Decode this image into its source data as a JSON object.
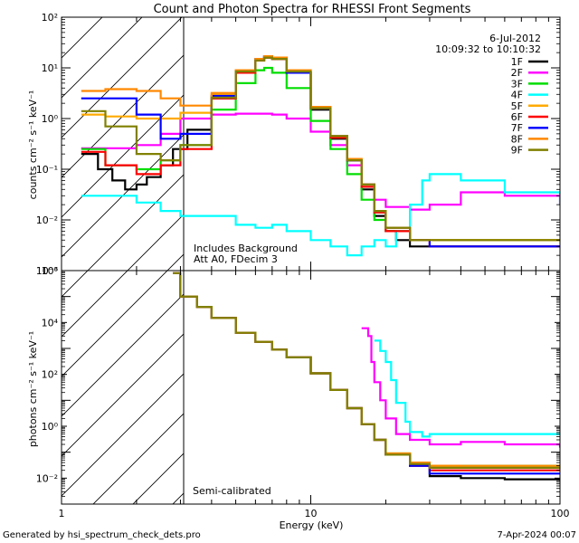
{
  "title": "Count and Photon Spectra for RHESSI Front Segments",
  "footer_left": "Generated by hsi_spectrum_check_dets.pro",
  "footer_right": "7-Apr-2024 00:07",
  "colors": {
    "1F": "#000000",
    "2F": "#ff00ff",
    "3F": "#00dd00",
    "4F": "#00ffff",
    "5F": "#ffaa00",
    "6F": "#ff0000",
    "7F": "#0000ff",
    "8F": "#ff8800",
    "9F": "#808000"
  },
  "chart_data": [
    {
      "type": "line",
      "panel": "counts",
      "title": "Count and Photon Spectra for RHESSI Front Segments",
      "date": "6-Jul-2012",
      "time_range": "10:09:32 to 10:10:32",
      "xlabel": "Energy (keV)",
      "ylabel": "counts cm⁻² s⁻¹ keV⁻¹",
      "xscale": "log",
      "yscale": "log",
      "xlim": [
        1,
        100
      ],
      "ylim": [
        0.001,
        100
      ],
      "x_ticks": [
        "1",
        "10",
        "100"
      ],
      "y_ticks": [
        "10⁻³",
        "10⁻²",
        "10⁻¹",
        "10⁰",
        "10¹",
        "10²"
      ],
      "shaded_below_keV": 3,
      "annotations": [
        "Includes Background",
        "Att A0, FDecim 3"
      ],
      "legend_position": "top-right",
      "series": [
        {
          "name": "1F",
          "x": [
            1.2,
            1.4,
            1.6,
            1.8,
            2.0,
            2.2,
            2.5,
            2.8,
            3.2,
            4,
            5,
            6,
            6.5,
            7,
            8,
            10,
            12,
            14,
            16,
            18,
            20,
            22,
            25,
            30,
            40,
            60,
            100
          ],
          "y": [
            0.2,
            0.1,
            0.06,
            0.04,
            0.05,
            0.07,
            0.12,
            0.25,
            0.6,
            2.5,
            8,
            14,
            16,
            15,
            8,
            1.5,
            0.4,
            0.15,
            0.04,
            0.012,
            0.006,
            0.004,
            0.003,
            0.003,
            0.003,
            0.003,
            0.003
          ]
        },
        {
          "name": "2F",
          "x": [
            1.2,
            1.5,
            2.0,
            2.5,
            3,
            4,
            5,
            6,
            7,
            8,
            10,
            12,
            14,
            16,
            18,
            20,
            25,
            30,
            40,
            60,
            100
          ],
          "y": [
            0.26,
            0.26,
            0.3,
            0.5,
            1.0,
            1.2,
            1.25,
            1.25,
            1.2,
            1.0,
            0.55,
            0.3,
            0.12,
            0.05,
            0.025,
            0.018,
            0.016,
            0.02,
            0.035,
            0.03,
            0.02
          ]
        },
        {
          "name": "3F",
          "x": [
            1.2,
            1.5,
            2.0,
            2.5,
            3,
            4,
            5,
            6,
            6.5,
            7,
            8,
            10,
            12,
            14,
            16,
            18,
            20,
            25,
            30,
            40,
            60,
            100
          ],
          "y": [
            0.25,
            0.12,
            0.1,
            0.15,
            0.3,
            1.5,
            5,
            9,
            10,
            8,
            4,
            0.9,
            0.25,
            0.08,
            0.025,
            0.01,
            0.006,
            0.004,
            0.004,
            0.004,
            0.004,
            0.004
          ]
        },
        {
          "name": "4F",
          "x": [
            1.2,
            1.5,
            2.0,
            2.5,
            3,
            4,
            5,
            6,
            7,
            8,
            10,
            12,
            14,
            16,
            18,
            20,
            22,
            25,
            28,
            30,
            40,
            60,
            100
          ],
          "y": [
            0.03,
            0.03,
            0.022,
            0.015,
            0.012,
            0.012,
            0.008,
            0.007,
            0.008,
            0.006,
            0.004,
            0.003,
            0.002,
            0.003,
            0.004,
            0.003,
            0.006,
            0.02,
            0.06,
            0.08,
            0.06,
            0.035,
            0.02
          ]
        },
        {
          "name": "5F",
          "x": [
            1.2,
            1.5,
            2.0,
            2.5,
            3,
            4,
            5,
            6,
            6.5,
            7,
            8,
            10,
            12,
            14,
            16,
            18,
            20,
            25,
            30,
            40,
            60,
            100
          ],
          "y": [
            1.2,
            1.1,
            1.0,
            1.0,
            1.3,
            3,
            9,
            15,
            17,
            16,
            9,
            1.7,
            0.45,
            0.16,
            0.05,
            0.015,
            0.007,
            0.004,
            0.004,
            0.004,
            0.004,
            0.004
          ]
        },
        {
          "name": "6F",
          "x": [
            1.2,
            1.5,
            2.0,
            2.5,
            3,
            4,
            5,
            6,
            6.5,
            7,
            8,
            10,
            12,
            14,
            16,
            18,
            20,
            25,
            30,
            40,
            60,
            100
          ],
          "y": [
            0.22,
            0.12,
            0.08,
            0.12,
            0.25,
            2.5,
            8,
            14,
            16,
            15,
            8,
            1.6,
            0.42,
            0.15,
            0.045,
            0.014,
            0.006,
            0.004,
            0.003,
            0.003,
            0.003,
            0.003
          ]
        },
        {
          "name": "7F",
          "x": [
            1.2,
            1.5,
            2.0,
            2.5,
            3,
            4,
            5,
            6,
            6.5,
            7,
            8,
            10,
            12,
            14,
            16,
            18,
            20,
            25,
            30,
            40,
            60,
            100
          ],
          "y": [
            2.5,
            2.5,
            1.2,
            0.4,
            0.5,
            2.8,
            9,
            15,
            17,
            16,
            8,
            1.6,
            0.45,
            0.15,
            0.05,
            0.015,
            0.007,
            0.004,
            0.003,
            0.003,
            0.003,
            0.003
          ]
        },
        {
          "name": "8F",
          "x": [
            1.2,
            1.5,
            2.0,
            2.5,
            3,
            4,
            5,
            6,
            6.5,
            7,
            8,
            10,
            12,
            14,
            16,
            18,
            20,
            25,
            30,
            40,
            60,
            100
          ],
          "y": [
            3.5,
            3.8,
            3.5,
            2.5,
            1.8,
            3.2,
            9,
            15,
            17,
            16,
            9,
            1.7,
            0.45,
            0.16,
            0.05,
            0.015,
            0.007,
            0.004,
            0.004,
            0.004,
            0.004,
            0.004
          ]
        },
        {
          "name": "9F",
          "x": [
            1.2,
            1.5,
            2.0,
            2.5,
            3,
            4,
            5,
            6,
            6.5,
            7,
            8,
            10,
            12,
            14,
            16,
            18,
            20,
            25,
            30,
            40,
            60,
            100
          ],
          "y": [
            1.4,
            0.7,
            0.2,
            0.15,
            0.3,
            2.6,
            8.5,
            14,
            16,
            15,
            8.5,
            1.6,
            0.45,
            0.15,
            0.05,
            0.015,
            0.007,
            0.004,
            0.004,
            0.004,
            0.004,
            0.004
          ]
        }
      ]
    },
    {
      "type": "line",
      "panel": "photons",
      "xlabel": "Energy (keV)",
      "ylabel": "photons cm⁻² s⁻¹ keV⁻¹",
      "xscale": "log",
      "yscale": "log",
      "xlim": [
        1,
        100
      ],
      "ylim": [
        0.001,
        1000000
      ],
      "x_ticks": [
        "1",
        "10",
        "100"
      ],
      "y_ticks": [
        "10⁻²",
        "10⁰",
        "10²",
        "10⁴",
        "10⁶"
      ],
      "shaded_below_keV": 3,
      "annotations": [
        "Semi-calibrated"
      ],
      "series": [
        {
          "name": "1F",
          "x": [
            2.8,
            3.0,
            3.5,
            4,
            5,
            6,
            7,
            8,
            10,
            12,
            14,
            16,
            18,
            20,
            25,
            30,
            40,
            60,
            100
          ],
          "y": [
            800000,
            100000,
            40000,
            15000,
            4000,
            1800,
            900,
            450,
            110,
            25,
            5,
            1.2,
            0.3,
            0.08,
            0.03,
            0.012,
            0.01,
            0.009,
            0.008
          ]
        },
        {
          "name": "2F",
          "x": [
            16,
            17,
            17.5,
            18,
            19,
            20,
            22,
            25,
            30,
            40,
            60,
            100
          ],
          "y": [
            6000,
            3000,
            300,
            50,
            10,
            2,
            0.5,
            0.3,
            0.2,
            0.25,
            0.2,
            0.15
          ]
        },
        {
          "name": "3F",
          "x": [
            2.8,
            3.0,
            3.5,
            4,
            5,
            6,
            7,
            8,
            10,
            12,
            14,
            16,
            18,
            20,
            25,
            30,
            40,
            60,
            100
          ],
          "y": [
            800000,
            100000,
            40000,
            15000,
            4000,
            1800,
            900,
            450,
            110,
            25,
            5,
            1.2,
            0.3,
            0.09,
            0.04,
            0.03,
            0.03,
            0.03,
            0.03
          ]
        },
        {
          "name": "4F",
          "x": [
            18,
            19,
            20,
            21,
            22,
            24,
            25,
            28,
            30,
            40,
            60,
            100
          ],
          "y": [
            2000,
            800,
            300,
            60,
            8,
            1.5,
            0.6,
            0.4,
            0.5,
            0.5,
            0.5,
            0.5
          ]
        },
        {
          "name": "5F",
          "x": [
            2.8,
            3.0,
            3.5,
            4,
            5,
            6,
            7,
            8,
            10,
            12,
            14,
            16,
            18,
            20,
            25,
            30,
            40,
            60,
            100
          ],
          "y": [
            800000,
            100000,
            40000,
            15000,
            4000,
            1800,
            900,
            450,
            110,
            25,
            5,
            1.2,
            0.3,
            0.08,
            0.04,
            0.03,
            0.025,
            0.025,
            0.025
          ]
        },
        {
          "name": "6F",
          "x": [
            2.8,
            3.0,
            3.5,
            4,
            5,
            6,
            7,
            8,
            10,
            12,
            14,
            16,
            18,
            20,
            25,
            30,
            40,
            60,
            100
          ],
          "y": [
            800000,
            100000,
            40000,
            15000,
            4000,
            1800,
            900,
            450,
            110,
            25,
            5,
            1.2,
            0.3,
            0.08,
            0.03,
            0.02,
            0.02,
            0.02,
            0.02
          ]
        },
        {
          "name": "7F",
          "x": [
            2.8,
            3.0,
            3.5,
            4,
            5,
            6,
            7,
            8,
            10,
            12,
            14,
            16,
            18,
            20,
            25,
            30,
            40,
            60,
            100
          ],
          "y": [
            800000,
            100000,
            40000,
            15000,
            4000,
            1800,
            900,
            450,
            110,
            25,
            5,
            1.2,
            0.3,
            0.08,
            0.03,
            0.015,
            0.015,
            0.015,
            0.015
          ]
        },
        {
          "name": "8F",
          "x": [
            2.8,
            3.0,
            3.5,
            4,
            5,
            6,
            7,
            8,
            10,
            12,
            14,
            16,
            18,
            20,
            25,
            30,
            40,
            60,
            100
          ],
          "y": [
            800000,
            100000,
            40000,
            15000,
            4000,
            1800,
            900,
            450,
            110,
            25,
            5,
            1.2,
            0.3,
            0.09,
            0.04,
            0.03,
            0.03,
            0.03,
            0.03
          ]
        },
        {
          "name": "9F",
          "x": [
            2.8,
            3.0,
            3.5,
            4,
            5,
            6,
            7,
            8,
            10,
            12,
            14,
            16,
            18,
            20,
            25,
            30,
            40,
            60,
            100
          ],
          "y": [
            800000,
            100000,
            40000,
            15000,
            4000,
            1800,
            900,
            450,
            110,
            25,
            5,
            1.2,
            0.3,
            0.08,
            0.035,
            0.025,
            0.025,
            0.025,
            0.025
          ]
        }
      ]
    }
  ]
}
